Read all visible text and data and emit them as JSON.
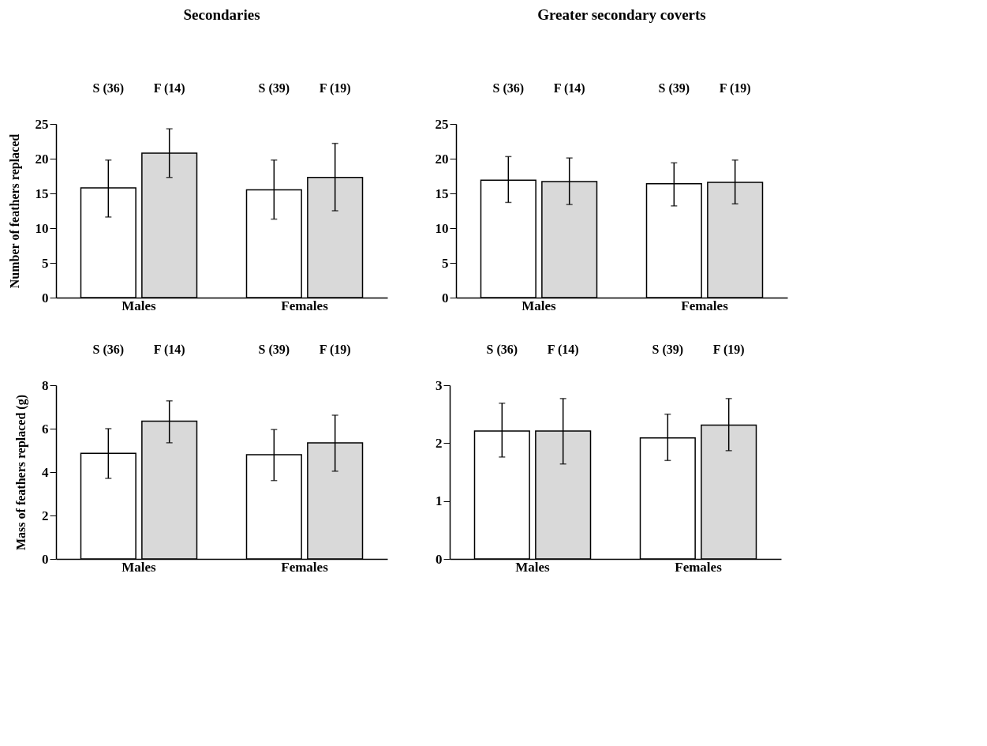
{
  "chart_data": [
    {
      "type": "bar",
      "title": "Secondaries",
      "ylabel": "Number of feathers replaced",
      "categories": [
        "Males",
        "Females"
      ],
      "series": [
        {
          "color": "#ffffff",
          "values": [
            15.8,
            15.5
          ],
          "errors": [
            [
              11.6,
              19.8
            ],
            [
              11.3,
              19.8
            ]
          ]
        },
        {
          "color": "#d9d9d9",
          "values": [
            20.8,
            17.3
          ],
          "errors": [
            [
              17.3,
              24.3
            ],
            [
              12.5,
              22.2
            ]
          ]
        }
      ],
      "annotations": [
        "S (36)",
        "F (14)",
        "S (39)",
        "F (19)"
      ],
      "ylim": [
        0,
        25
      ],
      "yticks": [
        0,
        5,
        10,
        15,
        20,
        25
      ],
      "grid": false
    },
    {
      "type": "bar",
      "title": "Greater secondary coverts",
      "categories": [
        "Males",
        "Females"
      ],
      "series": [
        {
          "color": "#ffffff",
          "values": [
            16.9,
            16.4
          ],
          "errors": [
            [
              13.7,
              20.3
            ],
            [
              13.2,
              19.4
            ]
          ]
        },
        {
          "color": "#d9d9d9",
          "values": [
            16.7,
            16.6
          ],
          "errors": [
            [
              13.4,
              20.1
            ],
            [
              13.5,
              19.8
            ]
          ]
        }
      ],
      "annotations": [
        "S (36)",
        "F (14)",
        "S (39)",
        "F (19)"
      ],
      "ylim": [
        0,
        25
      ],
      "yticks": [
        0,
        5,
        10,
        15,
        20,
        25
      ],
      "grid": false
    },
    {
      "type": "bar",
      "ylabel": "Mass of feathers replaced (g)",
      "categories": [
        "Males",
        "Females"
      ],
      "series": [
        {
          "color": "#ffffff",
          "values": [
            4.86,
            4.8
          ],
          "errors": [
            [
              3.71,
              6.0
            ],
            [
              3.61,
              5.96
            ]
          ]
        },
        {
          "color": "#d9d9d9",
          "values": [
            6.35,
            5.35
          ],
          "errors": [
            [
              5.35,
              7.28
            ],
            [
              4.04,
              6.62
            ]
          ]
        }
      ],
      "annotations": [
        "S (36)",
        "F (14)",
        "S (39)",
        "F (19)"
      ],
      "ylim": [
        0,
        8
      ],
      "yticks": [
        0,
        2,
        4,
        6,
        8
      ],
      "grid": false
    },
    {
      "type": "bar",
      "categories": [
        "Males",
        "Females"
      ],
      "series": [
        {
          "color": "#ffffff",
          "values": [
            2.21,
            2.09
          ],
          "errors": [
            [
              1.76,
              2.69
            ],
            [
              1.7,
              2.5
            ]
          ]
        },
        {
          "color": "#d9d9d9",
          "values": [
            2.21,
            2.31
          ],
          "errors": [
            [
              1.64,
              2.77
            ],
            [
              1.87,
              2.77
            ]
          ]
        }
      ],
      "annotations": [
        "S (36)",
        "F (14)",
        "S (39)",
        "F (19)"
      ],
      "ylim": [
        0,
        3
      ],
      "yticks": [
        0,
        1,
        2,
        3
      ],
      "grid": false
    }
  ]
}
